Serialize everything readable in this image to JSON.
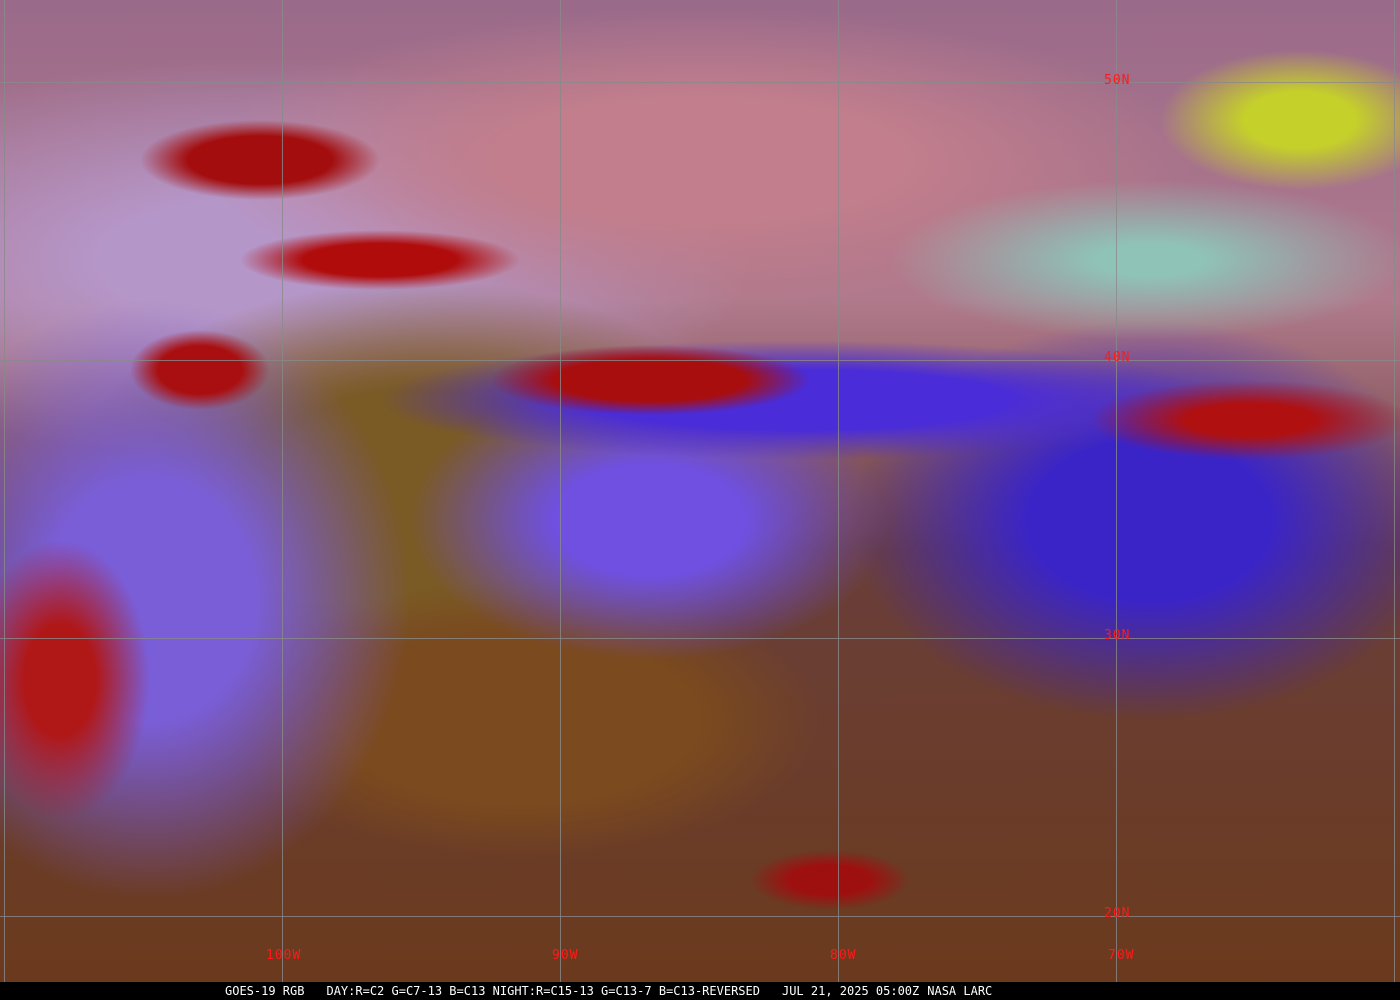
{
  "map": {
    "latitude_labels": [
      "50N",
      "40N",
      "30N",
      "20N"
    ],
    "longitude_labels": [
      "100W",
      "90W",
      "80W",
      "70W"
    ],
    "label_color": "#ff1a1a",
    "grid_color": "#8a8a8a",
    "boundary_color": "#1a1a8a"
  },
  "caption": {
    "product": "GOES-19 RGB",
    "recipe": "DAY:R=C2 G=C7-13 B=C13 NIGHT:R=C15-13 G=C13-7 B=C13-REVERSED",
    "timestamp": "JUL 21, 2025 05:00Z",
    "source": "NASA LARC"
  }
}
